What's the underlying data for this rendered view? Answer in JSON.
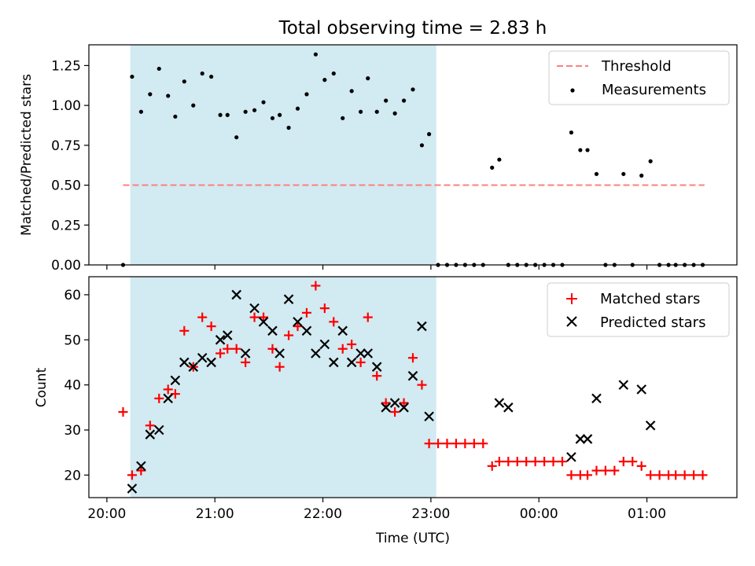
{
  "title": "Total observing time = 2.83 h",
  "colors": {
    "shade": "#add8e6",
    "threshold": "#ff7f7f",
    "matched": "#ff0000",
    "predicted": "#000000",
    "measurement": "#000000"
  },
  "x_tick_labels": [
    "20:00",
    "21:00",
    "22:00",
    "23:00",
    "00:00",
    "01:00"
  ],
  "xlabel": "Time (UTC)",
  "chart_data": [
    {
      "type": "scatter",
      "ylabel": "Matched/Predicted stars",
      "ylim": [
        0,
        1.38
      ],
      "y_tick_labels": [
        "0.00",
        "0.25",
        "0.50",
        "0.75",
        "1.00",
        "1.25"
      ],
      "y_ticks": [
        0,
        0.25,
        0.5,
        0.75,
        1.0,
        1.25
      ],
      "legend": [
        "Threshold",
        "Measurements"
      ],
      "legend_position": "top-right",
      "shaded_interval": [
        "20:13",
        "23:03"
      ],
      "threshold": {
        "name": "Threshold",
        "value": 0.5,
        "x_start": "20:09",
        "x_end": "01:32"
      },
      "series": [
        {
          "name": "Measurements",
          "x": [
            "20:09",
            "20:14",
            "20:19",
            "20:24",
            "20:29",
            "20:34",
            "20:38",
            "20:43",
            "20:48",
            "20:53",
            "20:58",
            "21:03",
            "21:07",
            "21:12",
            "21:17",
            "21:22",
            "21:27",
            "21:32",
            "21:36",
            "21:41",
            "21:46",
            "21:51",
            "21:56",
            "22:01",
            "22:06",
            "22:11",
            "22:16",
            "22:21",
            "22:25",
            "22:30",
            "22:35",
            "22:40",
            "22:45",
            "22:50",
            "22:55",
            "22:59",
            "23:04",
            "23:09",
            "23:14",
            "23:19",
            "23:24",
            "23:29",
            "23:34",
            "23:38",
            "23:43",
            "23:48",
            "23:53",
            "23:58",
            "00:03",
            "00:08",
            "00:13",
            "00:18",
            "00:23",
            "00:27",
            "00:32",
            "00:37",
            "00:42",
            "00:47",
            "00:52",
            "00:57",
            "01:02",
            "01:07",
            "01:12",
            "01:16",
            "01:21",
            "01:26",
            "01:31"
          ],
          "values": [
            0,
            1.18,
            0.96,
            1.07,
            1.23,
            1.06,
            0.93,
            1.15,
            1.0,
            1.2,
            1.18,
            0.94,
            0.94,
            0.8,
            0.96,
            0.97,
            1.02,
            0.92,
            0.94,
            0.86,
            0.98,
            1.07,
            1.32,
            1.16,
            1.2,
            0.92,
            1.09,
            0.96,
            1.17,
            0.96,
            1.03,
            0.95,
            1.03,
            1.1,
            0.75,
            0.82,
            0,
            0,
            0,
            0,
            0,
            0,
            0.61,
            0.66,
            0,
            0,
            0,
            0,
            0,
            0,
            0,
            0.83,
            0.72,
            0.72,
            0.57,
            0,
            0,
            0.57,
            0,
            0.56,
            0.65,
            0,
            0,
            0,
            0,
            0,
            0
          ]
        }
      ]
    },
    {
      "type": "scatter",
      "ylabel": "Count",
      "ylim": [
        15,
        64
      ],
      "y_tick_labels": [
        "20",
        "30",
        "40",
        "50",
        "60"
      ],
      "y_ticks": [
        20,
        30,
        40,
        50,
        60
      ],
      "legend": [
        "Matched stars",
        "Predicted stars"
      ],
      "legend_position": "top-right",
      "shaded_interval": [
        "20:13",
        "23:03"
      ],
      "series": [
        {
          "name": "Matched stars",
          "marker": "plus",
          "x": [
            "20:09",
            "20:14",
            "20:19",
            "20:24",
            "20:29",
            "20:34",
            "20:38",
            "20:43",
            "20:48",
            "20:53",
            "20:58",
            "21:03",
            "21:07",
            "21:12",
            "21:17",
            "21:22",
            "21:27",
            "21:32",
            "21:36",
            "21:41",
            "21:46",
            "21:51",
            "21:56",
            "22:01",
            "22:06",
            "22:11",
            "22:16",
            "22:21",
            "22:25",
            "22:30",
            "22:35",
            "22:40",
            "22:45",
            "22:50",
            "22:55",
            "22:59",
            "23:04",
            "23:09",
            "23:14",
            "23:19",
            "23:24",
            "23:29",
            "23:34",
            "23:38",
            "23:43",
            "23:48",
            "23:53",
            "23:58",
            "00:03",
            "00:08",
            "00:13",
            "00:18",
            "00:23",
            "00:27",
            "00:32",
            "00:37",
            "00:42",
            "00:47",
            "00:52",
            "00:57",
            "01:02",
            "01:07",
            "01:12",
            "01:16",
            "01:21",
            "01:26",
            "01:31"
          ],
          "values": [
            34,
            20,
            21,
            31,
            37,
            39,
            38,
            52,
            44,
            55,
            53,
            47,
            48,
            48,
            45,
            55,
            55,
            48,
            44,
            51,
            53,
            56,
            62,
            57,
            54,
            48,
            49,
            45,
            55,
            42,
            36,
            34,
            36,
            46,
            40,
            27,
            27,
            27,
            27,
            27,
            27,
            27,
            22,
            23,
            23,
            23,
            23,
            23,
            23,
            23,
            23,
            20,
            20,
            20,
            21,
            21,
            21,
            23,
            23,
            22,
            20,
            20,
            20,
            20,
            20,
            20,
            20
          ]
        },
        {
          "name": "Predicted stars",
          "marker": "x",
          "x": [
            "20:14",
            "20:19",
            "20:24",
            "20:29",
            "20:34",
            "20:38",
            "20:43",
            "20:48",
            "20:53",
            "20:58",
            "21:03",
            "21:07",
            "21:12",
            "21:17",
            "21:22",
            "21:27",
            "21:32",
            "21:36",
            "21:41",
            "21:46",
            "21:51",
            "21:56",
            "22:01",
            "22:06",
            "22:11",
            "22:16",
            "22:21",
            "22:25",
            "22:30",
            "22:35",
            "22:40",
            "22:45",
            "22:50",
            "22:55",
            "22:59",
            "23:38",
            "23:43",
            "00:18",
            "00:23",
            "00:27",
            "00:32",
            "00:47",
            "00:57",
            "01:02"
          ],
          "values": [
            17,
            22,
            29,
            30,
            37,
            41,
            45,
            44,
            46,
            45,
            50,
            51,
            60,
            47,
            57,
            54,
            52,
            47,
            59,
            54,
            52,
            47,
            49,
            45,
            52,
            45,
            47,
            47,
            44,
            35,
            36,
            35,
            42,
            53,
            33,
            36,
            35,
            24,
            28,
            28,
            37,
            40,
            39,
            31
          ]
        }
      ]
    }
  ]
}
